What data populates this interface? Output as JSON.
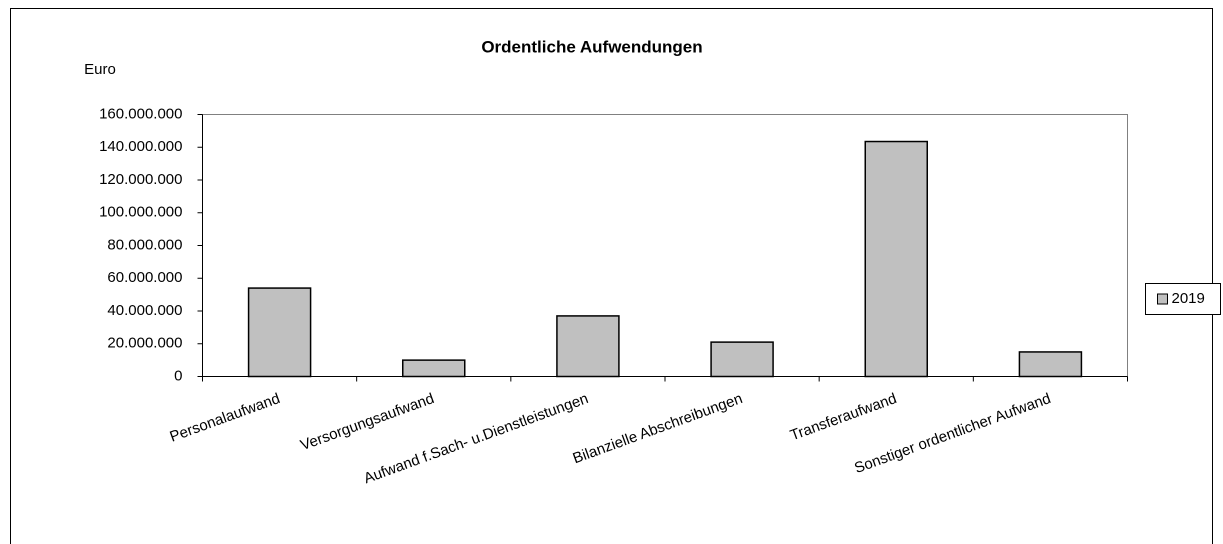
{
  "chart_data": {
    "type": "bar",
    "title": "Ordentliche Aufwendungen",
    "ylabel": "Euro",
    "categories": [
      "Personalaufwand",
      "Versorgungsaufwand",
      "Aufwand f.Sach- u.Dienstleistungen",
      "Bilanzielle Abschreibungen",
      "Transferaufwand",
      "Sonstiger ordentlicher Aufwand"
    ],
    "series": [
      {
        "name": "2019",
        "color": "#c0c0c0",
        "values": [
          54000000,
          10000000,
          37000000,
          21000000,
          143500000,
          15000000
        ]
      }
    ],
    "ylim": [
      0,
      160000000
    ],
    "yticks": [
      0,
      {
        "value": 20000000,
        "label": "20.000.000"
      },
      {
        "value": 40000000,
        "label": "40.000.000"
      },
      {
        "value": 60000000,
        "label": "60.000.000"
      },
      {
        "value": 80000000,
        "label": "80.000.000"
      },
      {
        "value": 100000000,
        "label": "100.000.000"
      },
      {
        "value": 120000000,
        "label": "120.000.000"
      },
      {
        "value": 140000000,
        "label": "140.000.000"
      },
      {
        "value": 160000000,
        "label": "160.000.000"
      }
    ],
    "grid": false,
    "legend": "right"
  }
}
